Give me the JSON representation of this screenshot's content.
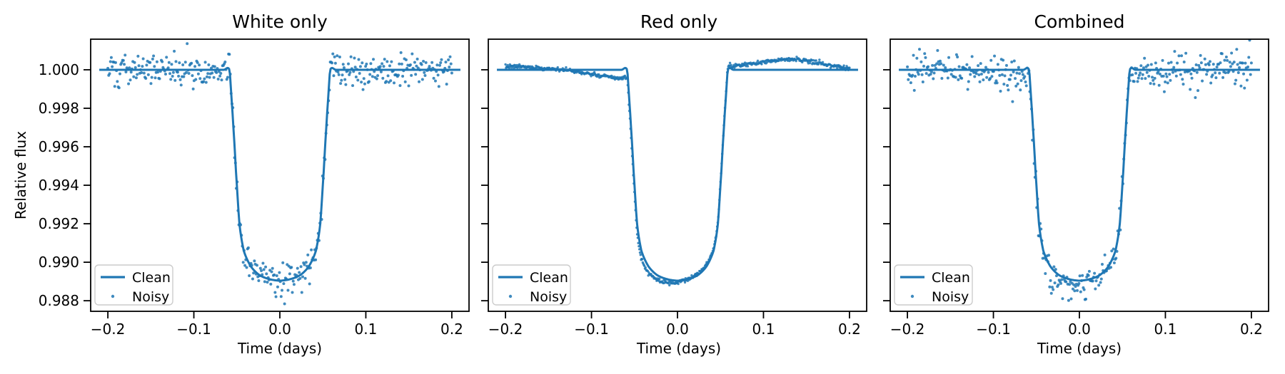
{
  "figure": {
    "background": "#ffffff",
    "accent_color": "#1f77b4",
    "axis_color": "#000000",
    "text_color": "#000000",
    "legend_border_color": "#cccccc",
    "legend_background": "#ffffff"
  },
  "chart_data": [
    {
      "type": "scatter",
      "title": "White only",
      "xlabel": "Time (days)",
      "ylabel": "Relative flux",
      "xlim": [
        -0.22,
        0.22
      ],
      "ylim": [
        0.98745,
        1.00159
      ],
      "grid": false,
      "legend_position": "lower left",
      "x_ticks": [
        {
          "v": -0.2,
          "label": "−0.2"
        },
        {
          "v": -0.1,
          "label": "−0.1"
        },
        {
          "v": 0.0,
          "label": "0.0"
        },
        {
          "v": 0.1,
          "label": "0.1"
        },
        {
          "v": 0.2,
          "label": "0.2"
        }
      ],
      "y_ticks": [
        {
          "v": 1.0,
          "label": "1.000"
        },
        {
          "v": 0.998,
          "label": "0.998"
        },
        {
          "v": 0.996,
          "label": "0.996"
        },
        {
          "v": 0.994,
          "label": "0.994"
        },
        {
          "v": 0.992,
          "label": "0.992"
        },
        {
          "v": 0.99,
          "label": "0.990"
        },
        {
          "v": 0.988,
          "label": "0.988"
        }
      ],
      "show_y_tick_labels": true,
      "legend": [
        {
          "label": "Clean",
          "marker": "line"
        },
        {
          "label": "Noisy",
          "marker": "dot"
        }
      ],
      "transit_model": {
        "t0": 0.0,
        "flux_out_of_transit": 1.0,
        "depth_center": 0.01096,
        "total_duration_halfwidth_days": 0.0585,
        "depth_vs_abs_time_keypoints": [
          [
            0.0,
            0.01096
          ],
          [
            0.012,
            0.01088
          ],
          [
            0.024,
            0.01066
          ],
          [
            0.034,
            0.0102
          ],
          [
            0.042,
            0.0094
          ],
          [
            0.047,
            0.008
          ],
          [
            0.051,
            0.0053
          ],
          [
            0.054,
            0.003
          ],
          [
            0.0565,
            0.0013
          ],
          [
            0.0585,
            0.0
          ],
          [
            0.065,
            0.0
          ],
          [
            0.09,
            0.0
          ]
        ]
      },
      "series": [
        {
          "name": "Clean",
          "kind": "line",
          "line_width": 3.0
        },
        {
          "name": "Noisy",
          "kind": "scatter",
          "n_points": 400,
          "t_range": [
            -0.2,
            0.2
          ],
          "white_sigma": 0.00042,
          "red_noise_keypoints": null,
          "seed": 101,
          "dot_radius": 2.0
        }
      ]
    },
    {
      "type": "scatter",
      "title": "Red only",
      "xlabel": "Time (days)",
      "ylabel": "Relative flux",
      "xlim": [
        -0.22,
        0.22
      ],
      "ylim": [
        0.98745,
        1.00159
      ],
      "grid": false,
      "legend_position": "lower left",
      "x_ticks": [
        {
          "v": -0.2,
          "label": "−0.2"
        },
        {
          "v": -0.1,
          "label": "−0.1"
        },
        {
          "v": 0.0,
          "label": "0.0"
        },
        {
          "v": 0.1,
          "label": "0.1"
        },
        {
          "v": 0.2,
          "label": "0.2"
        }
      ],
      "y_ticks": [
        {
          "v": 1.0,
          "label": "1.000"
        },
        {
          "v": 0.998,
          "label": "0.998"
        },
        {
          "v": 0.996,
          "label": "0.996"
        },
        {
          "v": 0.994,
          "label": "0.994"
        },
        {
          "v": 0.992,
          "label": "0.992"
        },
        {
          "v": 0.99,
          "label": "0.990"
        },
        {
          "v": 0.988,
          "label": "0.988"
        }
      ],
      "show_y_tick_labels": false,
      "legend": [
        {
          "label": "Clean",
          "marker": "line"
        },
        {
          "label": "Noisy",
          "marker": "dot"
        }
      ],
      "transit_model": {
        "t0": 0.0,
        "flux_out_of_transit": 1.0,
        "depth_center": 0.01096,
        "total_duration_halfwidth_days": 0.0585,
        "depth_vs_abs_time_keypoints": [
          [
            0.0,
            0.01096
          ],
          [
            0.012,
            0.01088
          ],
          [
            0.024,
            0.01066
          ],
          [
            0.034,
            0.0102
          ],
          [
            0.042,
            0.0094
          ],
          [
            0.047,
            0.008
          ],
          [
            0.051,
            0.0053
          ],
          [
            0.054,
            0.003
          ],
          [
            0.0565,
            0.0013
          ],
          [
            0.0585,
            0.0
          ],
          [
            0.065,
            0.0
          ],
          [
            0.09,
            0.0
          ]
        ]
      },
      "series": [
        {
          "name": "Clean",
          "kind": "line",
          "line_width": 3.0
        },
        {
          "name": "Noisy",
          "kind": "scatter",
          "n_points": 620,
          "t_range": [
            -0.2,
            0.2
          ],
          "white_sigma": 5e-05,
          "seed": 202,
          "dot_radius": 1.7,
          "red_noise_keypoints": [
            [
              -0.2,
              0.00018
            ],
            [
              -0.16,
              0.0001
            ],
            [
              -0.12,
              -8e-05
            ],
            [
              -0.08,
              -0.00038
            ],
            [
              -0.055,
              -0.00048
            ],
            [
              -0.03,
              -0.0003
            ],
            [
              0.0,
              -8e-05
            ],
            [
              0.03,
              0.0001
            ],
            [
              0.055,
              0.00012
            ],
            [
              0.09,
              0.00035
            ],
            [
              0.13,
              0.00055
            ],
            [
              0.165,
              0.00035
            ],
            [
              0.2,
              8e-05
            ]
          ]
        }
      ]
    },
    {
      "type": "scatter",
      "title": "Combined",
      "xlabel": "Time (days)",
      "ylabel": "Relative flux",
      "xlim": [
        -0.22,
        0.22
      ],
      "ylim": [
        0.98745,
        1.00159
      ],
      "grid": false,
      "legend_position": "lower left",
      "x_ticks": [
        {
          "v": -0.2,
          "label": "−0.2"
        },
        {
          "v": -0.1,
          "label": "−0.1"
        },
        {
          "v": 0.0,
          "label": "0.0"
        },
        {
          "v": 0.1,
          "label": "0.1"
        },
        {
          "v": 0.2,
          "label": "0.2"
        }
      ],
      "y_ticks": [
        {
          "v": 1.0,
          "label": "1.000"
        },
        {
          "v": 0.998,
          "label": "0.998"
        },
        {
          "v": 0.996,
          "label": "0.996"
        },
        {
          "v": 0.994,
          "label": "0.994"
        },
        {
          "v": 0.992,
          "label": "0.992"
        },
        {
          "v": 0.99,
          "label": "0.990"
        },
        {
          "v": 0.988,
          "label": "0.988"
        }
      ],
      "show_y_tick_labels": false,
      "legend": [
        {
          "label": "Clean",
          "marker": "line"
        },
        {
          "label": "Noisy",
          "marker": "dot"
        }
      ],
      "transit_model": {
        "t0": 0.0,
        "flux_out_of_transit": 1.0,
        "depth_center": 0.01096,
        "total_duration_halfwidth_days": 0.0585,
        "depth_vs_abs_time_keypoints": [
          [
            0.0,
            0.01096
          ],
          [
            0.012,
            0.01088
          ],
          [
            0.024,
            0.01066
          ],
          [
            0.034,
            0.0102
          ],
          [
            0.042,
            0.0094
          ],
          [
            0.047,
            0.008
          ],
          [
            0.051,
            0.0053
          ],
          [
            0.054,
            0.003
          ],
          [
            0.0565,
            0.0013
          ],
          [
            0.0585,
            0.0
          ],
          [
            0.065,
            0.0
          ],
          [
            0.09,
            0.0
          ]
        ]
      },
      "series": [
        {
          "name": "Clean",
          "kind": "line",
          "line_width": 3.0
        },
        {
          "name": "Noisy",
          "kind": "scatter",
          "n_points": 400,
          "t_range": [
            -0.2,
            0.2
          ],
          "white_sigma": 0.00042,
          "seed": 303,
          "dot_radius": 2.0,
          "red_noise_keypoints": [
            [
              -0.2,
              0.0001
            ],
            [
              -0.15,
              0.0
            ],
            [
              -0.1,
              -0.00012
            ],
            [
              -0.06,
              -0.00035
            ],
            [
              -0.02,
              -0.0003
            ],
            [
              0.02,
              -0.0002
            ],
            [
              0.06,
              0.0
            ],
            [
              0.1,
              -0.0001
            ],
            [
              0.15,
              5e-05
            ],
            [
              0.2,
              0.00012
            ]
          ]
        }
      ]
    }
  ]
}
